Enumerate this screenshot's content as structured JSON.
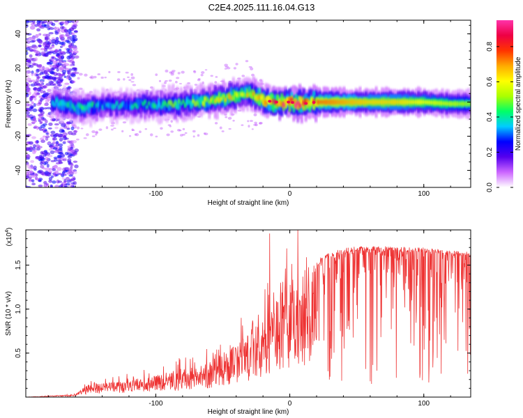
{
  "title": "C2E4.2025.111.16.04.G13",
  "chart_data": [
    {
      "type": "heatmap",
      "xlabel": "Height of straight line (km)",
      "ylabel": "Frequency (Hz)",
      "xlim": [
        -197,
        135
      ],
      "ylim": [
        -50,
        48
      ],
      "xticks": [
        -100,
        0,
        100
      ],
      "xtick_labels": [
        "-100",
        "0",
        "100"
      ],
      "yticks": [
        -40,
        -20,
        0,
        20,
        40
      ],
      "ytick_labels": [
        "-40",
        "-20",
        "0",
        "20",
        "40"
      ],
      "colorbar": {
        "label": "Normalized spectral amplitude",
        "range": [
          0,
          0.95
        ],
        "ticks": [
          0,
          0.2,
          0.4,
          0.6,
          0.8
        ],
        "tick_labels": [
          "0.0",
          "0.2",
          "0.4",
          "0.6",
          "0.8"
        ],
        "colors": [
          "#ffffff",
          "#cc66ff",
          "#5500ee",
          "#0000ff",
          "#00ccff",
          "#00ff66",
          "#aaff00",
          "#ffff00",
          "#ffaa00",
          "#ff3300",
          "#ee0044",
          "#ff33aa"
        ]
      },
      "ridge": {
        "x": [
          -197,
          -180,
          -170,
          -160,
          -150,
          -140,
          -130,
          -120,
          -110,
          -100,
          -90,
          -80,
          -70,
          -60,
          -50,
          -40,
          -30,
          -20,
          -10,
          0,
          10,
          20,
          40,
          60,
          80,
          100,
          120,
          135
        ],
        "center_hz": [
          0,
          0,
          -1,
          -3,
          -3,
          -2,
          -2,
          -2,
          -1,
          -2,
          -1,
          -1,
          0,
          1,
          2,
          4,
          5,
          1,
          0,
          0,
          -1,
          0,
          0,
          0,
          0,
          0,
          -1,
          -1
        ],
        "peak_amplitude": [
          0.3,
          0.35,
          0.4,
          0.4,
          0.4,
          0.35,
          0.35,
          0.35,
          0.4,
          0.4,
          0.45,
          0.45,
          0.5,
          0.55,
          0.6,
          0.6,
          0.6,
          0.7,
          0.8,
          0.85,
          0.8,
          0.75,
          0.7,
          0.65,
          0.65,
          0.6,
          0.55,
          0.5
        ]
      }
    },
    {
      "type": "line",
      "xlabel": "Height of straight line (km)",
      "ylabel": "SNR (10 * v/v)",
      "scale_label": "(x10",
      "scale_exp": "4",
      "xlim": [
        -197,
        135
      ],
      "ylim": [
        0,
        19000
      ],
      "xticks": [
        -100,
        0,
        100
      ],
      "xtick_labels": [
        "-100",
        "0",
        "100"
      ],
      "yticks": [
        5000,
        10000,
        15000
      ],
      "ytick_labels": [
        "0.5",
        "1.0",
        "1.5"
      ],
      "color": "#ee3333",
      "envelope": {
        "x": [
          -197,
          -160,
          -150,
          -120,
          -100,
          -80,
          -60,
          -40,
          -30,
          -20,
          -10,
          0,
          10,
          20,
          30,
          40,
          60,
          80,
          100,
          120,
          135
        ],
        "y": [
          0,
          300,
          1500,
          1800,
          2500,
          3000,
          4000,
          6000,
          7500,
          9000,
          11500,
          13000,
          14000,
          15500,
          16500,
          17000,
          17200,
          17100,
          17000,
          16700,
          16500
        ]
      },
      "spikes": [
        {
          "x": -15,
          "y": 18600
        },
        {
          "x": 6,
          "y": 19000
        },
        {
          "x": 22,
          "y": 14000
        },
        {
          "x": 38,
          "y": 13500
        },
        {
          "x": 60,
          "y": 1800
        },
        {
          "x": 65,
          "y": 3000
        },
        {
          "x": 133,
          "y": 10800
        }
      ]
    }
  ]
}
